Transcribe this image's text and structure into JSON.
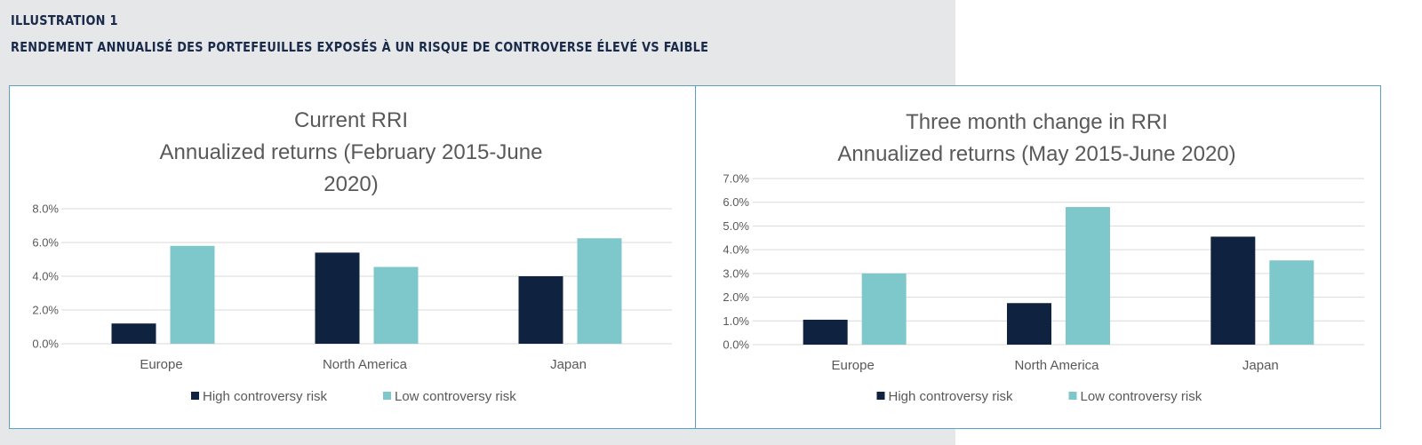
{
  "heading": {
    "label": "ILLUSTRATION 1",
    "title": "RENDEMENT ANNUALISÉ DES PORTEFEUILLES EXPOSÉS À UN RISQUE DE CONTROVERSE ÉLEVÉ VS FAIBLE"
  },
  "colors": {
    "high": "#0f2240",
    "low": "#7ec8cb",
    "grid": "#d9d9d9",
    "text": "#595959",
    "border": "#5aa0c2"
  },
  "chart_data": [
    {
      "type": "bar",
      "title_lines": [
        "Current RRI",
        "Annualized returns (February 2015-June",
        "2020)"
      ],
      "categories": [
        "Europe",
        "North America",
        "Japan"
      ],
      "series": [
        {
          "name": "High controversy risk",
          "values": [
            1.2,
            5.4,
            4.0
          ]
        },
        {
          "name": "Low controversy risk",
          "values": [
            5.8,
            4.55,
            6.25
          ]
        }
      ],
      "y_ticks": [
        "0.0%",
        "2.0%",
        "4.0%",
        "6.0%",
        "8.0%"
      ],
      "ylim": [
        0,
        8
      ],
      "y_unit": "%",
      "grid": true,
      "legend": "bottom"
    },
    {
      "type": "bar",
      "title_lines": [
        "Three month change in RRI",
        "Annualized returns (May 2015-June 2020)"
      ],
      "categories": [
        "Europe",
        "North America",
        "Japan"
      ],
      "series": [
        {
          "name": "High controversy risk",
          "values": [
            1.05,
            1.75,
            4.55
          ]
        },
        {
          "name": "Low controversy risk",
          "values": [
            3.0,
            5.8,
            3.55
          ]
        }
      ],
      "y_ticks": [
        "0.0%",
        "1.0%",
        "2.0%",
        "3.0%",
        "4.0%",
        "5.0%",
        "6.0%",
        "7.0%"
      ],
      "ylim": [
        0,
        7
      ],
      "y_unit": "%",
      "grid": true,
      "legend": "bottom"
    }
  ]
}
